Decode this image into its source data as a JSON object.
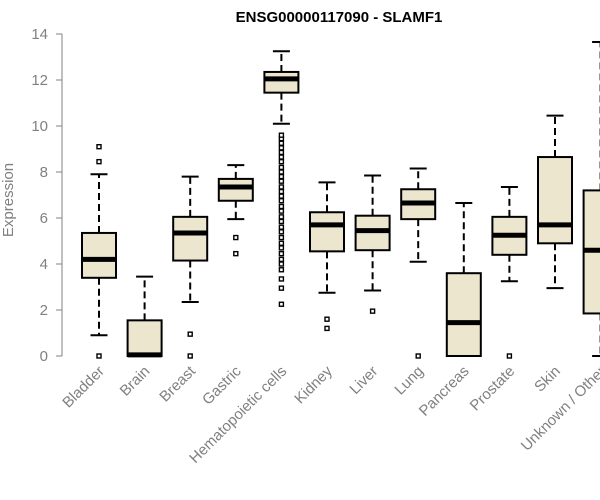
{
  "chart_data": {
    "type": "boxplot",
    "title": "ENSG00000117090 - SLAMF1",
    "xlabel": "",
    "ylabel": "Expression",
    "ylim": [
      0,
      14
    ],
    "yticks": [
      0,
      2,
      4,
      6,
      8,
      10,
      12,
      14
    ],
    "grid": false,
    "style": {
      "box_fill": "#ede6cf",
      "stroke": "#000000",
      "axis_color": "#808080"
    },
    "categories": [
      "Bladder",
      "Brain",
      "Breast",
      "Gastric",
      "Hematopoietic cells",
      "Kidney",
      "Liver",
      "Lung",
      "Pancreas",
      "Prostate",
      "Skin",
      "Unknown / Other"
    ],
    "series": [
      {
        "name": "Bladder",
        "q1": 3.4,
        "median": 4.2,
        "q3": 5.35,
        "whisker_low": 0.9,
        "whisker_high": 7.9,
        "outliers": [
          0.0,
          8.45,
          9.1
        ]
      },
      {
        "name": "Brain",
        "q1": 0.0,
        "median": 0.05,
        "q3": 1.55,
        "whisker_low": 0.0,
        "whisker_high": 3.45,
        "outliers": []
      },
      {
        "name": "Breast",
        "q1": 4.15,
        "median": 5.35,
        "q3": 6.05,
        "whisker_low": 2.35,
        "whisker_high": 7.8,
        "outliers": [
          0.0,
          0.95
        ]
      },
      {
        "name": "Gastric",
        "q1": 6.75,
        "median": 7.35,
        "q3": 7.7,
        "whisker_low": 5.95,
        "whisker_high": 8.3,
        "outliers": [
          4.45,
          5.15
        ]
      },
      {
        "name": "Hematopoietic cells",
        "q1": 11.45,
        "median": 12.05,
        "q3": 12.35,
        "whisker_low": 10.1,
        "whisker_high": 13.25,
        "outliers": [
          2.25,
          2.95,
          3.35,
          3.75,
          4.0,
          4.2,
          4.45,
          4.7,
          4.9,
          5.15,
          5.4,
          5.6,
          5.85,
          6.05,
          6.3,
          6.5,
          6.75,
          6.95,
          7.15,
          7.35,
          7.6,
          7.8,
          8.0,
          8.2,
          8.45,
          8.65,
          8.85,
          9.05,
          9.25,
          9.45,
          9.6
        ]
      },
      {
        "name": "Kidney",
        "q1": 4.55,
        "median": 5.7,
        "q3": 6.25,
        "whisker_low": 2.75,
        "whisker_high": 7.55,
        "outliers": [
          1.2,
          1.6
        ]
      },
      {
        "name": "Liver",
        "q1": 4.6,
        "median": 5.45,
        "q3": 6.1,
        "whisker_low": 2.85,
        "whisker_high": 7.85,
        "outliers": [
          1.95
        ]
      },
      {
        "name": "Lung",
        "q1": 5.95,
        "median": 6.65,
        "q3": 7.25,
        "whisker_low": 4.1,
        "whisker_high": 8.15,
        "outliers": [
          0.0
        ]
      },
      {
        "name": "Pancreas",
        "q1": 0.0,
        "median": 1.45,
        "q3": 3.6,
        "whisker_low": 0.0,
        "whisker_high": 6.65,
        "outliers": []
      },
      {
        "name": "Prostate",
        "q1": 4.4,
        "median": 5.25,
        "q3": 6.05,
        "whisker_low": 3.25,
        "whisker_high": 7.35,
        "outliers": [
          0.0
        ]
      },
      {
        "name": "Skin",
        "q1": 4.9,
        "median": 5.7,
        "q3": 8.65,
        "whisker_low": 2.95,
        "whisker_high": 10.45,
        "outliers": []
      },
      {
        "name": "Unknown / Other",
        "q1": 1.85,
        "median": 4.6,
        "q3": 7.2,
        "whisker_low": 0.0,
        "whisker_high": 13.65,
        "outliers": []
      }
    ]
  }
}
